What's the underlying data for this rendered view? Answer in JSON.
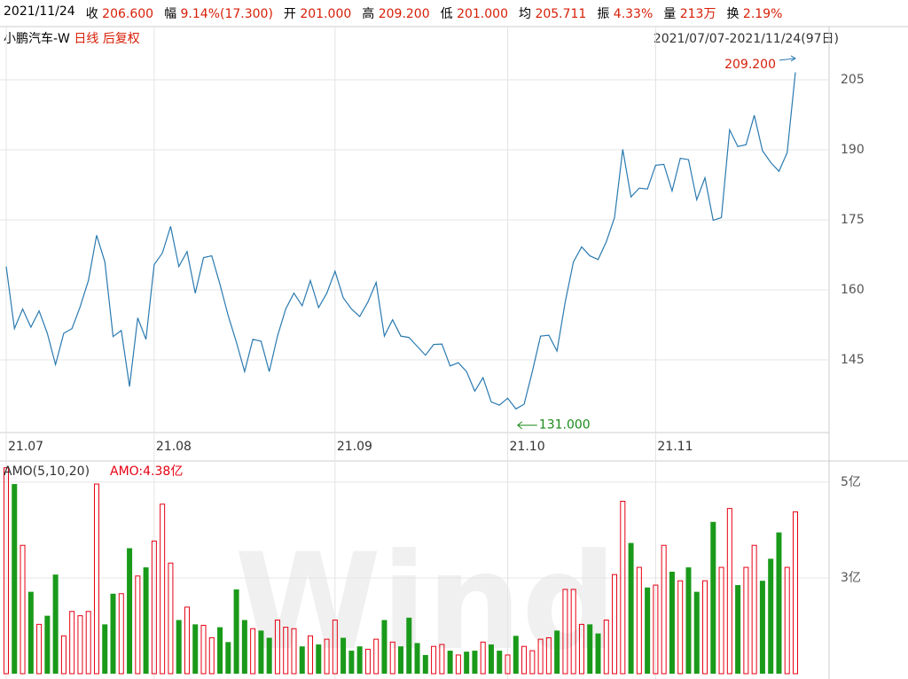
{
  "header": {
    "date": "2021/11/24",
    "items": [
      {
        "label": "收",
        "value": "206.600"
      },
      {
        "label": "幅",
        "value": "9.14%(17.300)"
      },
      {
        "label": "开",
        "value": "201.000"
      },
      {
        "label": "高",
        "value": "209.200"
      },
      {
        "label": "低",
        "value": "201.000"
      },
      {
        "label": "均",
        "value": "205.711"
      },
      {
        "label": "振",
        "value": "4.33%"
      },
      {
        "label": "量",
        "value": "213万"
      },
      {
        "label": "换",
        "value": "2.19%"
      }
    ],
    "name": "小鹏汽车-W",
    "period": "日线",
    "adjust": "后复权",
    "range": "2021/07/07-2021/11/24(97日)"
  },
  "watermark": "Wind",
  "chart_data": [
    {
      "type": "line",
      "color": "#2a7ab0",
      "xlim": [
        0,
        96
      ],
      "xticks": [
        {
          "value": 0,
          "label": "21.07"
        },
        {
          "value": 18,
          "label": "21.08"
        },
        {
          "value": 40,
          "label": "21.09"
        },
        {
          "value": 61,
          "label": "21.10"
        },
        {
          "value": 79,
          "label": "21.11"
        }
      ],
      "ylim": [
        130,
        216.4
      ],
      "yticks": [
        145,
        160,
        175,
        190,
        205
      ],
      "grid": true,
      "values": [
        165,
        151.7,
        155.9,
        152,
        155.5,
        150.7,
        144,
        150.7,
        151.7,
        156.4,
        162,
        171.7,
        166,
        150,
        151.3,
        139.3,
        154,
        149.4,
        165.4,
        167.9,
        173.6,
        165,
        168.2,
        159.3,
        166.9,
        167.3,
        161.2,
        154.5,
        148.8,
        142.5,
        149.4,
        149,
        142.5,
        150.1,
        155.9,
        159.3,
        156.6,
        162,
        156.2,
        159.3,
        164,
        158.3,
        155.9,
        154.3,
        157.4,
        161.6,
        150.1,
        153.6,
        150.1,
        149.8,
        147.9,
        146,
        148.3,
        148.4,
        143.7,
        144.4,
        142.5,
        138.3,
        141.2,
        136,
        135.3,
        136.8,
        134.5,
        135.5,
        142.5,
        150.1,
        150.3,
        146.9,
        157.4,
        166,
        169.2,
        167.3,
        166.5,
        170.3,
        175.5,
        190.1,
        179.9,
        181.8,
        181.6,
        186.7,
        186.9,
        181.2,
        188.2,
        187.9,
        179.3,
        184,
        174.9,
        175.5,
        194.3,
        190.7,
        191.1,
        197.4,
        189.8,
        187.3,
        185.4,
        189.4,
        206.6
      ],
      "annotations": [
        {
          "label": "209.200",
          "value": 209.2,
          "index": 96,
          "color": "#d81e06"
        },
        {
          "label": "131.000",
          "value": 131,
          "index": 62,
          "color": "#1a8a1a"
        }
      ]
    },
    {
      "type": "bar",
      "up_color": "#e60012",
      "down_color": "#1a9a1a",
      "legend": "AMO(5,10,20)",
      "current": "AMO:4.38亿",
      "xlim": [
        0,
        96
      ],
      "ylim": [
        1.0,
        5.35
      ],
      "yticks": [
        {
          "value": 3,
          "label": "3亿"
        },
        {
          "value": 5,
          "label": "5亿"
        }
      ],
      "values": [
        5.3,
        4.96,
        3.68,
        2.71,
        2.03,
        2.21,
        3.07,
        1.79,
        2.3,
        2.21,
        2.3,
        4.96,
        2.03,
        2.67,
        2.67,
        3.62,
        3.04,
        3.22,
        3.77,
        4.54,
        3.31,
        2.12,
        2.39,
        2.03,
        2.01,
        1.75,
        1.97,
        1.66,
        2.76,
        2.12,
        1.94,
        1.9,
        1.75,
        2.12,
        1.97,
        1.94,
        1.57,
        1.79,
        1.61,
        1.72,
        2.12,
        1.75,
        1.48,
        1.57,
        1.51,
        1.72,
        2.12,
        1.66,
        1.57,
        2.17,
        1.64,
        1.39,
        1.57,
        1.61,
        1.48,
        1.39,
        1.46,
        1.48,
        1.66,
        1.61,
        1.48,
        1.39,
        1.79,
        1.57,
        1.48,
        1.72,
        1.75,
        1.9,
        2.76,
        2.76,
        2.03,
        2.03,
        1.84,
        2.12,
        3.07,
        4.6,
        3.73,
        3.22,
        2.8,
        2.85,
        3.68,
        3.13,
        2.94,
        3.22,
        2.71,
        2.94,
        4.17,
        3.22,
        4.45,
        2.85,
        3.22,
        3.68,
        2.94,
        3.4,
        3.95,
        3.22,
        4.38
      ]
    }
  ]
}
